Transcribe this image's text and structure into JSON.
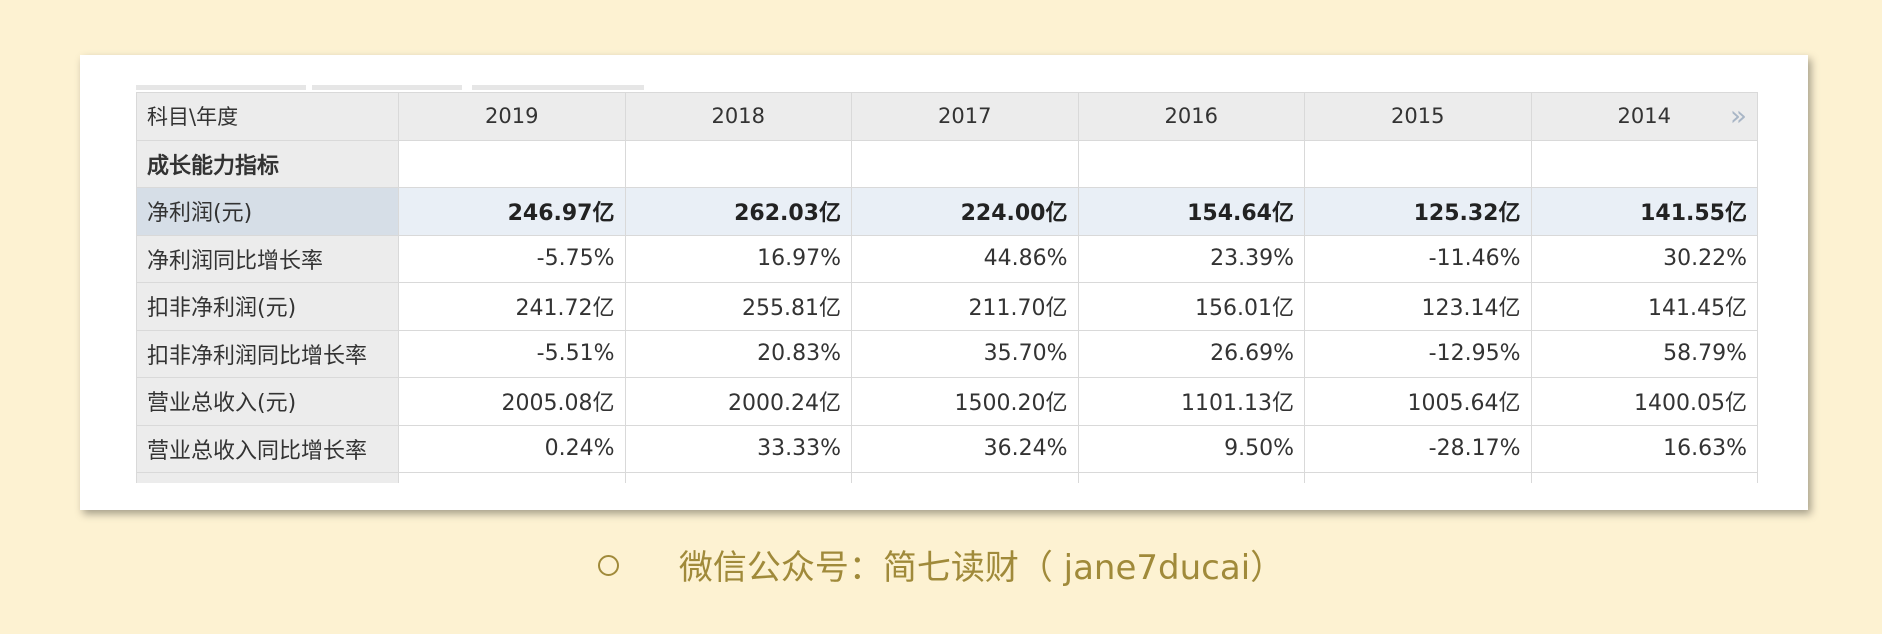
{
  "table": {
    "header_label": "科目\\年度",
    "years": [
      "2019",
      "2018",
      "2017",
      "2016",
      "2015",
      "2014"
    ],
    "more_icon": "»",
    "section_label": "成长能力指标",
    "rows": [
      {
        "label": "净利润(元)",
        "values": [
          "246.97亿",
          "262.03亿",
          "224.00亿",
          "154.64亿",
          "125.32亿",
          "141.55亿"
        ]
      },
      {
        "label": "净利润同比增长率",
        "values": [
          "-5.75%",
          "16.97%",
          "44.86%",
          "23.39%",
          "-11.46%",
          "30.22%"
        ]
      },
      {
        "label": "扣非净利润(元)",
        "values": [
          "241.72亿",
          "255.81亿",
          "211.70亿",
          "156.01亿",
          "123.14亿",
          "141.45亿"
        ]
      },
      {
        "label": "扣非净利润同比增长率",
        "values": [
          "-5.51%",
          "20.83%",
          "35.70%",
          "26.69%",
          "-12.95%",
          "58.79%"
        ]
      },
      {
        "label": "营业总收入(元)",
        "values": [
          "2005.08亿",
          "2000.24亿",
          "1500.20亿",
          "1101.13亿",
          "1005.64亿",
          "1400.05亿"
        ]
      },
      {
        "label": "营业总收入同比增长率",
        "values": [
          "0.24%",
          "33.33%",
          "36.24%",
          "9.50%",
          "-28.17%",
          "16.63%"
        ]
      }
    ]
  },
  "footer": {
    "text": "微信公众号：简七读财（ jane7ducai）"
  },
  "colors": {
    "page_background": "#fdf2d2",
    "footer_text": "#a08a3a",
    "header_background": "#ececec",
    "highlight_row": "#e9eff6"
  }
}
